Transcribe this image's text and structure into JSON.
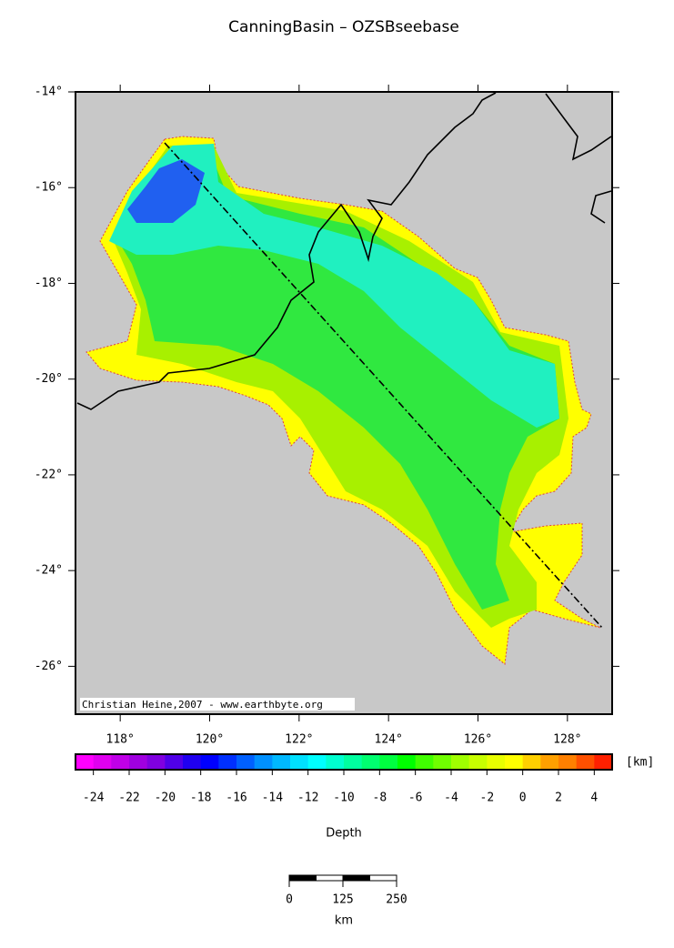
{
  "title": "CanningBasin – OZSBseebase",
  "map": {
    "xlim": [
      117,
      129
    ],
    "ylim": [
      -27,
      -14
    ],
    "xticks": [
      {
        "value": 118,
        "label": "118°"
      },
      {
        "value": 120,
        "label": "120°"
      },
      {
        "value": 122,
        "label": "122°"
      },
      {
        "value": 124,
        "label": "124°"
      },
      {
        "value": 126,
        "label": "126°"
      },
      {
        "value": 128,
        "label": "128°"
      }
    ],
    "yticks": [
      {
        "value": -14,
        "label": "-14°"
      },
      {
        "value": -16,
        "label": "-16°"
      },
      {
        "value": -18,
        "label": "-18°"
      },
      {
        "value": -20,
        "label": "-20°"
      },
      {
        "value": -22,
        "label": "-22°"
      },
      {
        "value": -24,
        "label": "-24°"
      },
      {
        "value": -26,
        "label": "-26°"
      }
    ],
    "credit": "Christian Heine,2007 - www.earthbyte.org"
  },
  "colorbar": {
    "range": [
      -25,
      5
    ],
    "ticks": [
      -24,
      -22,
      -20,
      -18,
      -16,
      -14,
      -12,
      -10,
      -8,
      -6,
      -4,
      -2,
      0,
      2,
      4
    ],
    "unit": "[km]",
    "label": "Depth",
    "colors": [
      "#ff00ff",
      "#e000f0",
      "#c000e8",
      "#a000e0",
      "#8000e0",
      "#5000e8",
      "#2000f0",
      "#0000ff",
      "#0030ff",
      "#0060ff",
      "#0090ff",
      "#00b8ff",
      "#00e0ff",
      "#00ffff",
      "#00ffd0",
      "#00ffa0",
      "#00ff70",
      "#00ff40",
      "#00ff00",
      "#40ff00",
      "#70ff00",
      "#a0ff00",
      "#c8ff00",
      "#e8ff00",
      "#ffff00",
      "#ffd000",
      "#ffa000",
      "#ff8000",
      "#ff5000",
      "#ff2000"
    ]
  },
  "scalebar": {
    "ticks": [
      0,
      125,
      250
    ],
    "unit": "km"
  }
}
